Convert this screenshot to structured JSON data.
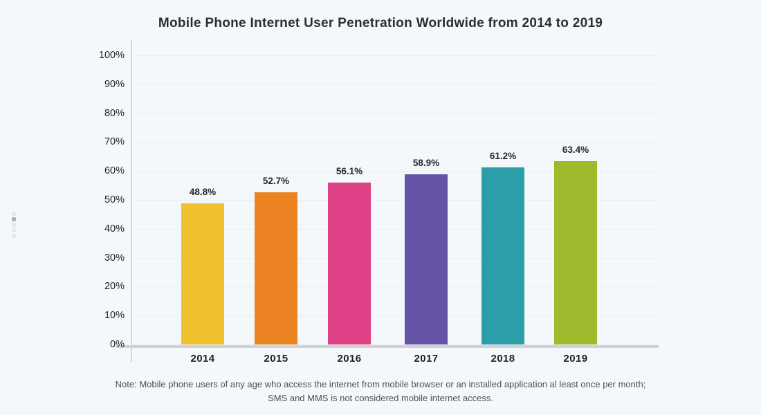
{
  "title": "Mobile Phone Internet User Penetration Worldwide from 2014 to 2019",
  "note": "Note: Mobile phone users of any age who access the internet from mobile browser or an installed application al least once per month; SMS and MMS is not considered mobile internet access.",
  "left_handle": {
    "icon": "drag-handle-icon",
    "dots": 5,
    "active_dot_index": 1
  },
  "chart_data": {
    "type": "bar",
    "title": "Mobile Phone Internet User Penetration Worldwide from 2014 to 2019",
    "categories": [
      "2014",
      "2015",
      "2016",
      "2017",
      "2018",
      "2019"
    ],
    "values": [
      48.8,
      52.7,
      56.1,
      58.9,
      61.2,
      63.4
    ],
    "value_labels": [
      "48.8%",
      "52.7%",
      "56.1%",
      "58.9%",
      "61.2%",
      "63.4%"
    ],
    "bar_colors": [
      "#F0C12F",
      "#EC8323",
      "#DF4187",
      "#6553A8",
      "#2B9EA9",
      "#9CBA2B"
    ],
    "xlabel": "",
    "ylabel": "",
    "ylim": [
      0,
      100
    ],
    "ytick_step": 10,
    "ytick_labels": [
      "0%",
      "10%",
      "20%",
      "30%",
      "40%",
      "50%",
      "60%",
      "70%",
      "80%",
      "90%",
      "100%"
    ],
    "grid": "horizontal",
    "legend": "none",
    "background": "#F4F8FA"
  }
}
